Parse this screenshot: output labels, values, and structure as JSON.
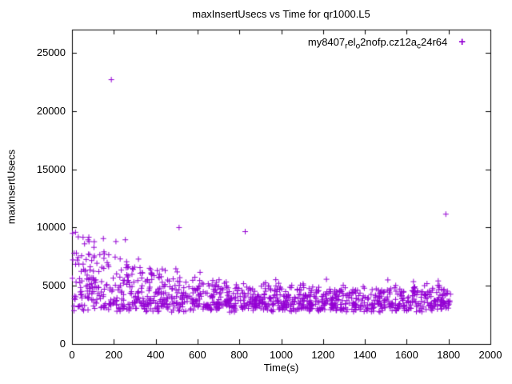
{
  "chart_data": {
    "type": "scatter",
    "title": "maxInsertUsecs vs Time for qr1000.L5",
    "xlabel": "Time(s)",
    "ylabel": "maxInsertUsecs",
    "xlim": [
      0,
      2000
    ],
    "ylim": [
      0,
      27000
    ],
    "xticks": [
      0,
      200,
      400,
      600,
      800,
      1000,
      1200,
      1400,
      1600,
      1800,
      2000
    ],
    "yticks": [
      0,
      5000,
      10000,
      15000,
      20000,
      25000
    ],
    "grid": false,
    "legend_position": "top-right-inside",
    "marker": {
      "shape": "plus",
      "color": "#9400D3",
      "size": 7
    },
    "series": [
      {
        "name": "my8407_rel_o2nofp.cz12a_c24r64",
        "label_parts": [
          {
            "text": "my8407",
            "sub": false
          },
          {
            "text": "r",
            "sub": true
          },
          {
            "text": "el",
            "sub": false
          },
          {
            "text": "o",
            "sub": true
          },
          {
            "text": "2nofp.cz12a",
            "sub": false
          },
          {
            "text": "c",
            "sub": true
          },
          {
            "text": "24r64",
            "sub": false
          }
        ],
        "generator": {
          "seed": 42,
          "n": 1200,
          "t_max": 1810,
          "base": 2700,
          "noise": 700,
          "decay_amp": 5800,
          "decay_tau": 280,
          "amp_floor": 1700,
          "wave_amp": 900,
          "wave_period": 60,
          "cap": 10500
        },
        "outliers": [
          [
            188,
            22700
          ],
          [
            512,
            10000
          ],
          [
            828,
            9650
          ],
          [
            1787,
            11150
          ],
          [
            30,
            9200
          ],
          [
            150,
            9050
          ],
          [
            255,
            8950
          ],
          [
            210,
            8800
          ],
          [
            60,
            8600
          ],
          [
            105,
            8300
          ]
        ]
      }
    ]
  }
}
